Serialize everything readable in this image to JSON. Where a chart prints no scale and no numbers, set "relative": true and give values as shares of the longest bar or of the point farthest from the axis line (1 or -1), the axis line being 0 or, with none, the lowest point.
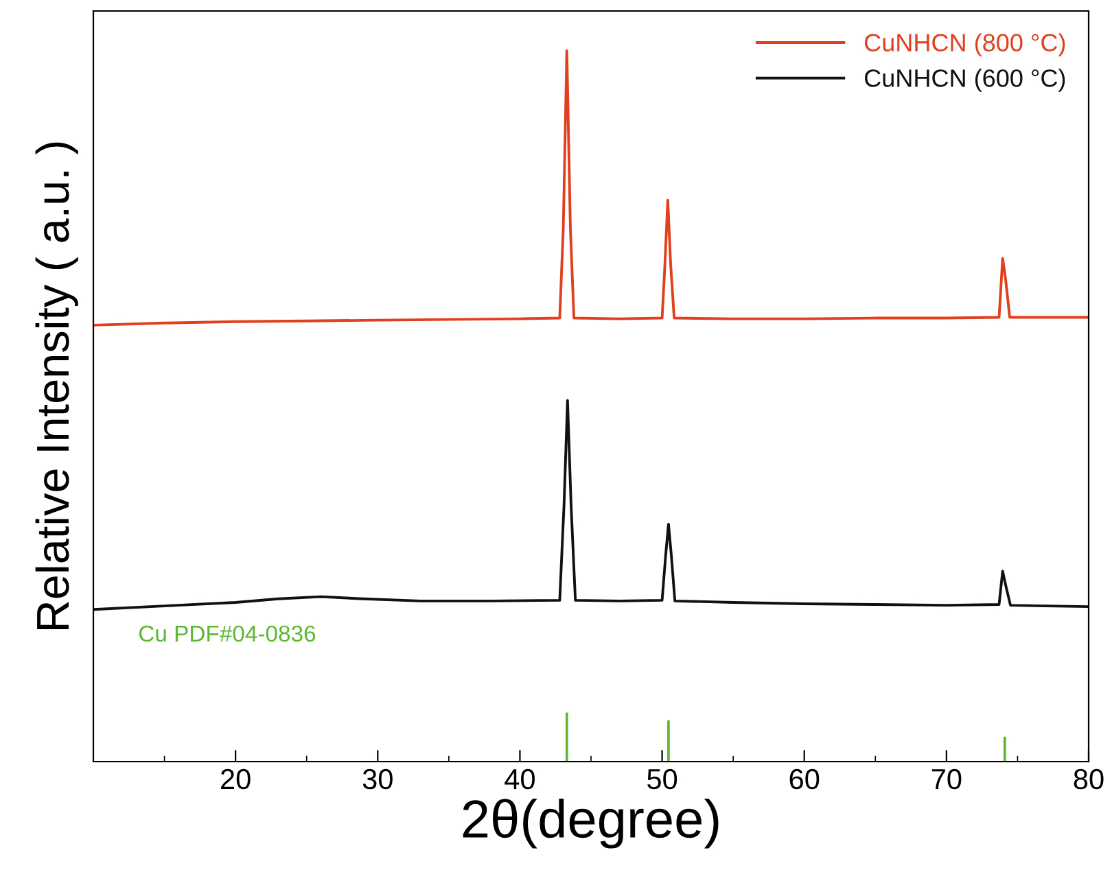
{
  "chart_data": {
    "type": "line",
    "relative": true,
    "xlabel": "2θ(degree)",
    "ylabel": "Relative Intensity ( a.u. )",
    "xlim": [
      10,
      80
    ],
    "xticks": [
      20,
      30,
      40,
      50,
      60,
      70,
      80
    ],
    "legend": "top right",
    "grid": false,
    "tick_labels": "x",
    "annotations": [
      "Cu PDF#04-0836"
    ],
    "series": [
      {
        "name": "CuNHCN (800 °C)",
        "color": "#e0401e",
        "x": [
          10,
          15,
          20,
          25,
          30,
          35,
          40,
          42.8,
          43.05,
          43.3,
          43.55,
          43.8,
          47,
          50.0,
          50.2,
          50.4,
          50.6,
          50.85,
          55,
          60,
          65,
          70,
          73.7,
          73.95,
          74.15,
          74.45,
          77,
          80
        ],
        "values": [
          0.614,
          0.617,
          0.619,
          0.62,
          0.621,
          0.622,
          0.623,
          0.624,
          0.75,
          1.0,
          0.75,
          0.624,
          0.623,
          0.624,
          0.7,
          0.79,
          0.7,
          0.624,
          0.623,
          0.623,
          0.624,
          0.624,
          0.625,
          0.708,
          0.68,
          0.625,
          0.625,
          0.625
        ]
      },
      {
        "name": "CuNHCN (600 °C)",
        "color": "#111111",
        "x": [
          10,
          15,
          20,
          23,
          26,
          29,
          33,
          38,
          42.8,
          43.1,
          43.35,
          43.6,
          43.9,
          47,
          50.0,
          50.25,
          50.45,
          50.65,
          50.9,
          55,
          60,
          65,
          70,
          73.7,
          73.95,
          74.2,
          74.5,
          77,
          80
        ],
        "values": [
          0.214,
          0.219,
          0.224,
          0.229,
          0.232,
          0.229,
          0.226,
          0.226,
          0.227,
          0.36,
          0.508,
          0.36,
          0.227,
          0.226,
          0.227,
          0.29,
          0.334,
          0.29,
          0.226,
          0.224,
          0.222,
          0.221,
          0.22,
          0.221,
          0.268,
          0.245,
          0.22,
          0.219,
          0.218
        ]
      },
      {
        "type": "bar",
        "color": "#5cb82e",
        "x": [
          43.3,
          50.45,
          74.1
        ],
        "values": [
          0.069,
          0.058,
          0.035
        ]
      }
    ]
  }
}
